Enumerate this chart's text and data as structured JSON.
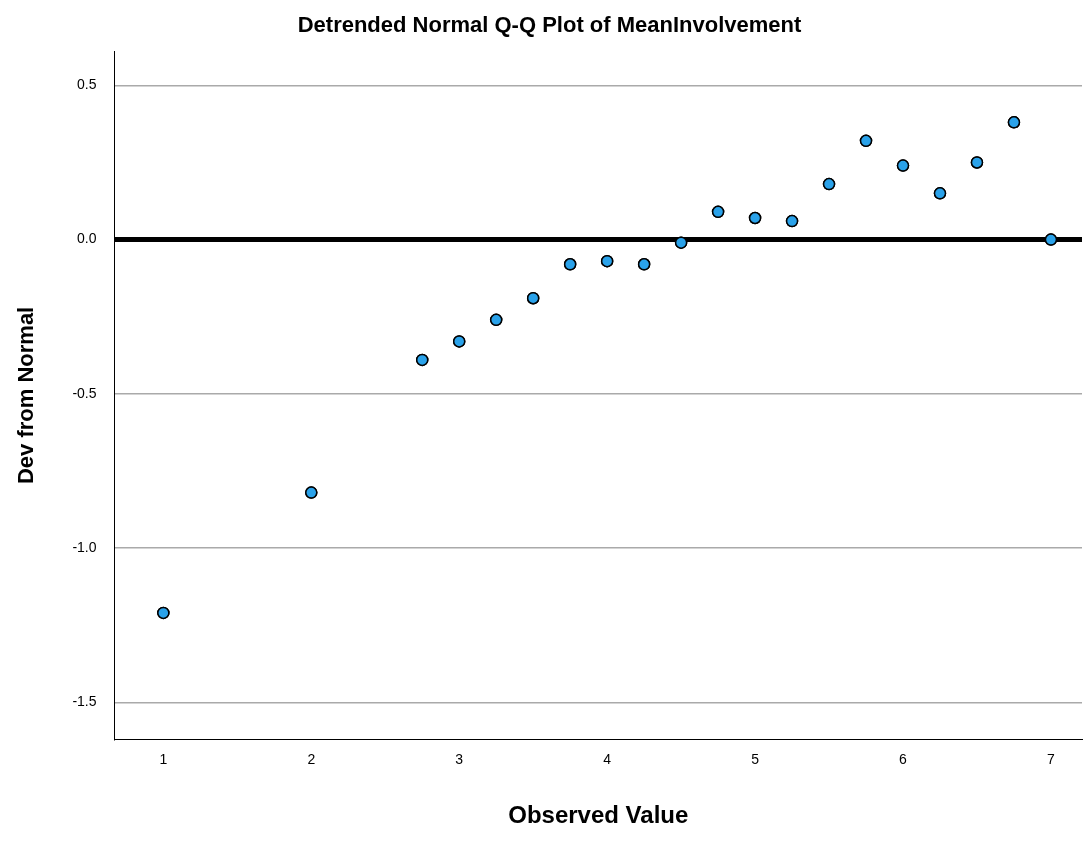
{
  "chart_data": {
    "type": "scatter",
    "title": "Detrended Normal Q-Q Plot of MeanInvolvement",
    "xlabel": "Observed Value",
    "ylabel": "Dev from Normal",
    "x": [
      1,
      2,
      2.75,
      3,
      3.25,
      3.5,
      3.75,
      4,
      4.25,
      4.5,
      4.75,
      5,
      5.25,
      5.5,
      5.75,
      6,
      6.25,
      6.5,
      6.75,
      7
    ],
    "series": [
      {
        "color": "#2aa2ea",
        "values": [
          -1.21,
          -0.82,
          -0.39,
          -0.33,
          -0.26,
          -0.19,
          -0.08,
          -0.07,
          -0.08,
          -0.01,
          0.09,
          0.07,
          0.06,
          0.18,
          0.32,
          0.24,
          0.15,
          0.25,
          0.38,
          0.0
        ]
      }
    ],
    "xlim": [
      0.67,
      7.21
    ],
    "xticks": [
      1,
      2,
      3,
      4,
      5,
      6,
      7
    ],
    "ylim": [
      -1.62,
      0.61
    ],
    "yticks": [
      {
        "value": 0.5,
        "label": "0.5"
      },
      {
        "value": 0,
        "label": "0.0"
      },
      {
        "value": -0.5,
        "label": "-0.5"
      },
      {
        "value": -1,
        "label": "-1.0"
      },
      {
        "value": -1.5,
        "label": "-1.5"
      }
    ],
    "ref_lines": [
      {
        "axis": "y",
        "value": 0,
        "color": "#000000"
      }
    ],
    "grid": "y",
    "marker": "circle",
    "legend": false
  }
}
